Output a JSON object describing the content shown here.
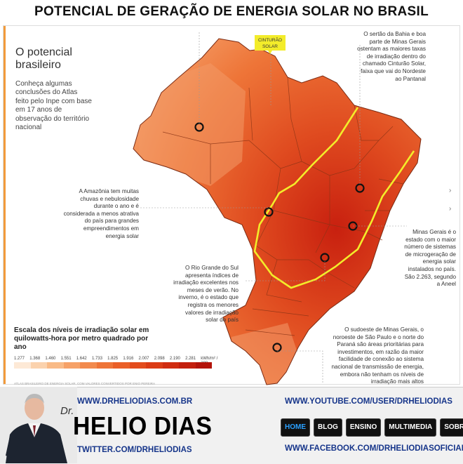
{
  "page": {
    "title": "POTENCIAL DE GERAÇÃO DE ENERGIA SOLAR NO BRASIL"
  },
  "panel": {
    "title": "O potencial brasileiro",
    "body": "Conheça algumas conclusões do Atlas feito pelo Inpe com base em 17 anos de observação do território nacional"
  },
  "map": {
    "belt_label_line1": "CINTURÃO",
    "belt_label_line2": "SOLAR",
    "colors": {
      "belt": "#f3ec2a",
      "marker": "#111111",
      "accent": "#f29a3b"
    }
  },
  "notes": {
    "sertao": "O sertão da Bahia e boa parte de Minas Gerais ostentam as maiores taxas de irradiação dentro do chamado Cinturão Solar, faixa que vai do Nordeste ao Pantanal",
    "amazonia": "A Amazônia tem muitas chuvas e nebulosidade durante o ano e é considerada a menos atrativa do país para grandes empreendimentos em energia solar",
    "minas": "Minas Gerais é o estado com o maior número de sistemas de microgeração de energia solar instalados no país. São 2.263, segundo a Aneel",
    "rs": "O Rio Grande do Sul apresenta índices de irradiação excelentes nos meses de verão. No inverno, é o estado que registra os menores valores de irradiação solar do país",
    "sudoeste": "O sudoeste de Minas Gerais, o noroeste de São Paulo e o norte do Paraná são áreas prioritárias para investimentos, em razão da maior facilidade de conexão ao sistema nacional de transmissão de energia, embora não tenham os níveis de irradiação mais altos"
  },
  "scale": {
    "title": "Escala dos níveis de irradiação solar em quilowatts-hora por metro quadrado por ano",
    "values": [
      "1.277",
      "1.368",
      "1.460",
      "1.551",
      "1.642",
      "1.733",
      "1.825",
      "1.916",
      "2.007",
      "2.098",
      "2.190",
      "2.281"
    ],
    "unit": "kWh/m² / ano",
    "colors": [
      "#fde9d6",
      "#fbd2ad",
      "#f9ba86",
      "#f6a167",
      "#f28a4d",
      "#ee7437",
      "#ea5f27",
      "#e34c1d",
      "#db3b15",
      "#d02c10",
      "#c31f0d",
      "#b3140a"
    ]
  },
  "credit": "ATLAS BRASILEIRO DE ENERGIA SOLAR, COM VALORES CONVERTIDOS POR ENIO PEREIRA",
  "footer": {
    "site": "WWW.DRHELIODIAS.COM.BR",
    "dr": "Dr.",
    "name": "HELIO DIAS",
    "twitter": "TWITTER.COM/DRHELIODIAS",
    "youtube": "WWW.YOUTUBE.COM/USER/DRHELIODIAS",
    "facebook": "WWW.FACEBOOK.COM/DRHELIODIASOFICIAL",
    "nav": [
      "HOME",
      "BLOG",
      "ENSINO",
      "MULTIMEDIA",
      "SOBRE"
    ]
  }
}
